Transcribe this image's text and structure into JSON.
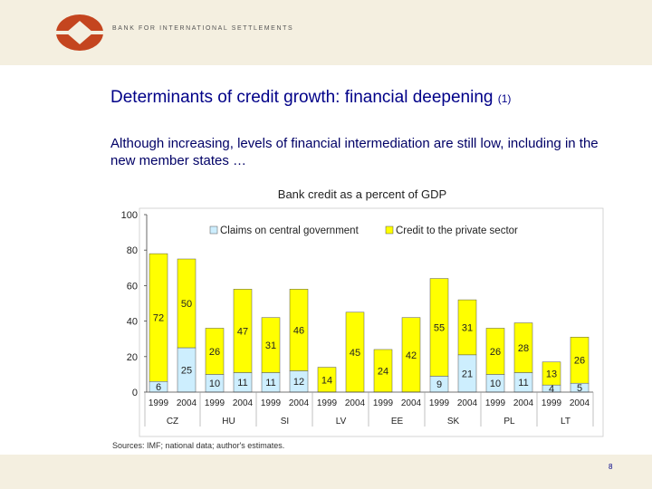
{
  "header": {
    "org_name": "BANK FOR INTERNATIONAL SETTLEMENTS"
  },
  "slide": {
    "title": "Determinants of credit growth: financial deepening",
    "title_note": "(1)",
    "subtitle": "Although increasing, levels of financial intermediation are still low, including in the new member states …",
    "page_number": "8"
  },
  "colors": {
    "brand": "#c4451f",
    "title": "#000088",
    "government": "#cdeefe",
    "private": "#ffff00"
  },
  "chart_data": {
    "type": "bar",
    "stacked": true,
    "title": "Bank credit as a percent of GDP",
    "source": "Sources: IMF; national data; author's estimates.",
    "ylim": [
      0,
      100
    ],
    "yticks": [
      0,
      20,
      40,
      60,
      80,
      100
    ],
    "grid": false,
    "legend_position": "top",
    "x": [
      "1999",
      "2004",
      "1999",
      "2004",
      "1999",
      "2004",
      "1999",
      "2004",
      "1999",
      "2004",
      "1999",
      "2004",
      "1999",
      "2004",
      "1999",
      "2004"
    ],
    "groups": [
      {
        "label": "CZ",
        "years": [
          "1999",
          "2004"
        ]
      },
      {
        "label": "HU",
        "years": [
          "1999",
          "2004"
        ]
      },
      {
        "label": "SI",
        "years": [
          "1999",
          "2004"
        ]
      },
      {
        "label": "LV",
        "years": [
          "1999",
          "2004"
        ]
      },
      {
        "label": "EE",
        "years": [
          "1999",
          "2004"
        ]
      },
      {
        "label": "SK",
        "years": [
          "1999",
          "2004"
        ]
      },
      {
        "label": "PL",
        "years": [
          "1999",
          "2004"
        ]
      },
      {
        "label": "LT",
        "years": [
          "1999",
          "2004"
        ]
      }
    ],
    "series": [
      {
        "name": "Claims on central government",
        "values": [
          6,
          25,
          10,
          11,
          11,
          12,
          0,
          0,
          0,
          0,
          9,
          21,
          10,
          11,
          4,
          5
        ],
        "labels": [
          "6",
          "25",
          "10",
          "11",
          "11",
          "12",
          "",
          "",
          "",
          "",
          "9",
          "21",
          "10",
          "11",
          "4",
          "5"
        ]
      },
      {
        "name": "Credit to the private sector",
        "values": [
          72,
          50,
          26,
          47,
          31,
          46,
          14,
          45,
          24,
          42,
          55,
          31,
          26,
          28,
          13,
          26
        ],
        "labels": [
          "72",
          "50",
          "26",
          "47",
          "31",
          "46",
          "14",
          "45",
          "24",
          "42",
          "55",
          "31",
          "26",
          "28",
          "13",
          "26"
        ]
      }
    ]
  }
}
